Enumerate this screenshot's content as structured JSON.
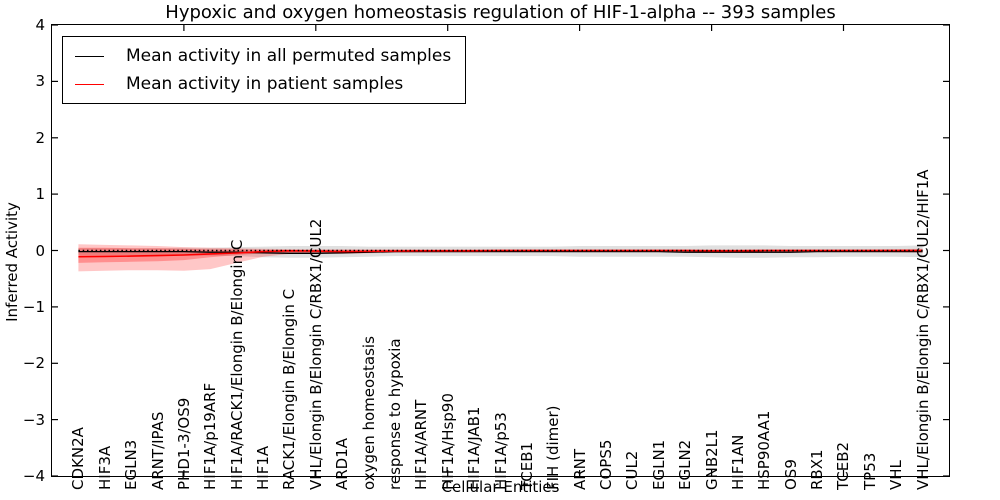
{
  "chart_data": {
    "type": "line",
    "title": "Hypoxic and oxygen homeostasis regulation of HIF-1-alpha -- 393 samples",
    "xlabel": "Cellular Entities",
    "ylabel": "Inferred Activity",
    "ylim": [
      -4,
      4
    ],
    "xlim": [
      0,
      34
    ],
    "grid": false,
    "legend_position": "upper left",
    "y_axis_ticks": [
      4,
      3,
      2,
      1,
      0,
      -1,
      -2,
      -3,
      -4
    ],
    "y_axis_tick_labels": [
      "4",
      "3",
      "2",
      "1",
      "0",
      "−1",
      "−2",
      "−3",
      "−4"
    ],
    "x_axis_ticks": [
      5,
      10,
      15,
      20,
      25,
      30
    ],
    "categories": [
      "CDKN2A",
      "HIF3A",
      "EGLN3",
      "ARNT/IPAS",
      "PHD1-3/OS9",
      "HIF1A/p19ARF",
      "HIF1A/RACK1/Elongin B/Elongin C",
      "HIF1A",
      "RACK1/Elongin B/Elongin C",
      "VHL/Elongin B/Elongin C/RBX1/CUL2",
      "ARD1A",
      "oxygen homeostasis",
      "response to hypoxia",
      "HIF1A/ARNT",
      "HIF1A/Hsp90",
      "HIF1A/JAB1",
      "HIF1A/p53",
      "TCEB1",
      "FIH (dimer)",
      "ARNT",
      "COPS5",
      "CUL2",
      "EGLN1",
      "EGLN2",
      "GNB2L1",
      "HIF1AN",
      "HSP90AA1",
      "OS9",
      "RBX1",
      "TCEB2",
      "TP53",
      "VHL",
      "VHL/Elongin B/Elongin C/RBX1/CUL2/HIF1A"
    ],
    "series": [
      {
        "name": "Mean activity in all permuted samples",
        "color": "#000000",
        "style": "solid",
        "values": [
          -0.02,
          -0.02,
          -0.02,
          -0.02,
          -0.02,
          -0.03,
          -0.03,
          -0.04,
          -0.05,
          -0.05,
          -0.04,
          -0.03,
          -0.02,
          -0.02,
          -0.02,
          -0.02,
          -0.02,
          -0.02,
          -0.02,
          -0.02,
          -0.02,
          -0.02,
          -0.02,
          -0.03,
          -0.03,
          -0.03,
          -0.03,
          -0.03,
          -0.02,
          -0.02,
          -0.02,
          -0.02,
          -0.02
        ]
      },
      {
        "name": "Mean activity in patient samples",
        "color": "#ff0000",
        "style": "solid",
        "values": [
          -0.11,
          -0.105,
          -0.1,
          -0.09,
          -0.08,
          -0.06,
          -0.045,
          -0.02,
          -0.005,
          -0.01,
          -0.02,
          -0.015,
          -0.01,
          -0.005,
          -0.005,
          -0.005,
          0,
          0,
          0,
          0,
          0,
          0,
          0,
          0,
          -0.005,
          -0.005,
          0,
          0,
          0,
          0,
          0,
          0,
          0
        ]
      }
    ],
    "bands": [
      {
        "name": "permuted-samples-spread",
        "color": "#000000",
        "alpha": 0.12,
        "upper": [
          0.04,
          0.04,
          0.04,
          0.04,
          0.05,
          0.05,
          0.06,
          0.07,
          0.08,
          0.08,
          0.08,
          0.07,
          0.07,
          0.07,
          0.07,
          0.07,
          0.07,
          0.07,
          0.07,
          0.08,
          0.08,
          0.08,
          0.08,
          0.08,
          0.09,
          0.09,
          0.09,
          0.08,
          0.08,
          0.08,
          0.08,
          0.08,
          0.09
        ],
        "lower": [
          -0.08,
          -0.08,
          -0.08,
          -0.08,
          -0.09,
          -0.09,
          -0.1,
          -0.12,
          -0.13,
          -0.13,
          -0.12,
          -0.11,
          -0.1,
          -0.1,
          -0.1,
          -0.1,
          -0.1,
          -0.1,
          -0.1,
          -0.11,
          -0.11,
          -0.11,
          -0.11,
          -0.11,
          -0.12,
          -0.13,
          -0.13,
          -0.12,
          -0.12,
          -0.11,
          -0.11,
          -0.11,
          -0.12
        ]
      },
      {
        "name": "patient-samples-spread-outer",
        "color": "#ff0000",
        "alpha": 0.22,
        "upper": [
          0.11,
          0.1,
          0.09,
          0.08,
          0.06,
          0.05,
          0.04,
          0.03,
          0.025,
          0.02,
          0.02,
          0.02,
          0.02,
          0.02,
          0.02,
          0.02,
          0.02,
          0.02,
          0.02,
          0.02,
          0.02,
          0.02,
          0.02,
          0.02,
          0.02,
          0.02,
          0.02,
          0.02,
          0.02,
          0.02,
          0.02,
          0.025,
          0.03
        ],
        "lower": [
          -0.37,
          -0.36,
          -0.35,
          -0.35,
          -0.36,
          -0.33,
          -0.22,
          -0.11,
          -0.06,
          -0.055,
          -0.06,
          -0.05,
          -0.04,
          -0.035,
          -0.03,
          -0.03,
          -0.025,
          -0.025,
          -0.025,
          -0.025,
          -0.025,
          -0.025,
          -0.025,
          -0.025,
          -0.03,
          -0.03,
          -0.025,
          -0.025,
          -0.025,
          -0.025,
          -0.025,
          -0.03,
          -0.04
        ]
      },
      {
        "name": "patient-samples-spread-inner",
        "color": "#ff0000",
        "alpha": 0.28,
        "upper": [
          0.05,
          0.05,
          0.04,
          0.04,
          0.03,
          0.02,
          0.02,
          0.015,
          0.01,
          0.01,
          0.01,
          0.01,
          0.01,
          0.01,
          0.01,
          0.01,
          0.01,
          0.01,
          0.01,
          0.01,
          0.01,
          0.01,
          0.01,
          0.01,
          0.01,
          0.01,
          0.01,
          0.01,
          0.01,
          0.01,
          0.01,
          0.015,
          0.02
        ],
        "lower": [
          -0.22,
          -0.21,
          -0.2,
          -0.19,
          -0.17,
          -0.12,
          -0.08,
          -0.05,
          -0.035,
          -0.035,
          -0.04,
          -0.03,
          -0.025,
          -0.02,
          -0.02,
          -0.02,
          -0.015,
          -0.015,
          -0.015,
          -0.015,
          -0.015,
          -0.015,
          -0.015,
          -0.015,
          -0.02,
          -0.02,
          -0.015,
          -0.015,
          -0.015,
          -0.015,
          -0.015,
          -0.02,
          -0.025
        ]
      }
    ],
    "zero_reference_line": {
      "color": "#000000",
      "style": "dotted"
    }
  }
}
